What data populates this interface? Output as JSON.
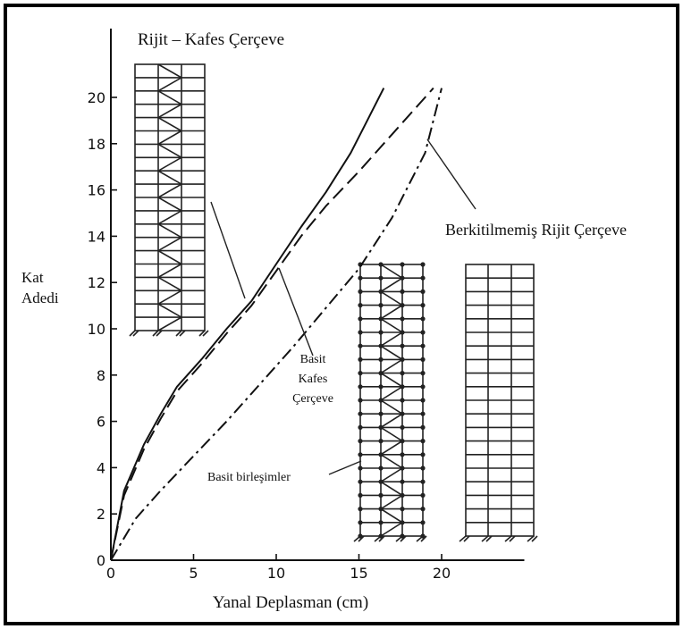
{
  "chart_data": {
    "type": "line",
    "title": "",
    "xlabel": "Yanal Deplasman (cm)",
    "ylabel_line1": "Kat",
    "ylabel_line2": "Adedi",
    "xlim": [
      0,
      25
    ],
    "ylim": [
      0,
      21
    ],
    "xticks": [
      0,
      5,
      10,
      15,
      20
    ],
    "yticks": [
      0,
      2,
      4,
      6,
      8,
      10,
      12,
      14,
      16,
      18,
      20
    ],
    "grid": false,
    "series": [
      {
        "style": "solid",
        "color": "#111111",
        "x": [
          0,
          0.8,
          2,
          3,
          4,
          5.5,
          7,
          8.5,
          10,
          11.5,
          13,
          14.5,
          15.5,
          16.5
        ],
        "y": [
          0,
          3,
          5,
          6.3,
          7.5,
          8.7,
          10,
          11.2,
          12.8,
          14.4,
          15.9,
          17.6,
          19,
          20.4
        ]
      },
      {
        "style": "dashed",
        "color": "#111111",
        "x": [
          0,
          0.8,
          2,
          3,
          4,
          5.5,
          7,
          8.5,
          10,
          11.5,
          13,
          15,
          17,
          19.5
        ],
        "y": [
          0,
          2.8,
          4.8,
          6.1,
          7.3,
          8.5,
          9.8,
          11,
          12.5,
          14,
          15.3,
          16.8,
          18.4,
          20.4
        ]
      },
      {
        "style": "dashdot",
        "color": "#111111",
        "x": [
          0,
          1.5,
          3,
          5,
          7,
          9,
          11,
          13,
          15,
          17,
          19,
          20
        ],
        "y": [
          0,
          1.8,
          3,
          4.5,
          6,
          7.6,
          9.2,
          10.9,
          12.6,
          14.8,
          17.6,
          20.4
        ]
      }
    ],
    "annotations": [
      {
        "id": "rigid-truss",
        "text": "Rijit – Kafes Çerçeve"
      },
      {
        "id": "unbraced",
        "text": "Berkitilmemiş Rijit Çerçeve"
      },
      {
        "id": "simple-truss-1",
        "text": "Basit"
      },
      {
        "id": "simple-truss-2",
        "text": "Kafes"
      },
      {
        "id": "simple-truss-3",
        "text": "Çerçeve"
      },
      {
        "id": "simple-joints",
        "text": "Basit birleşimler"
      }
    ]
  }
}
